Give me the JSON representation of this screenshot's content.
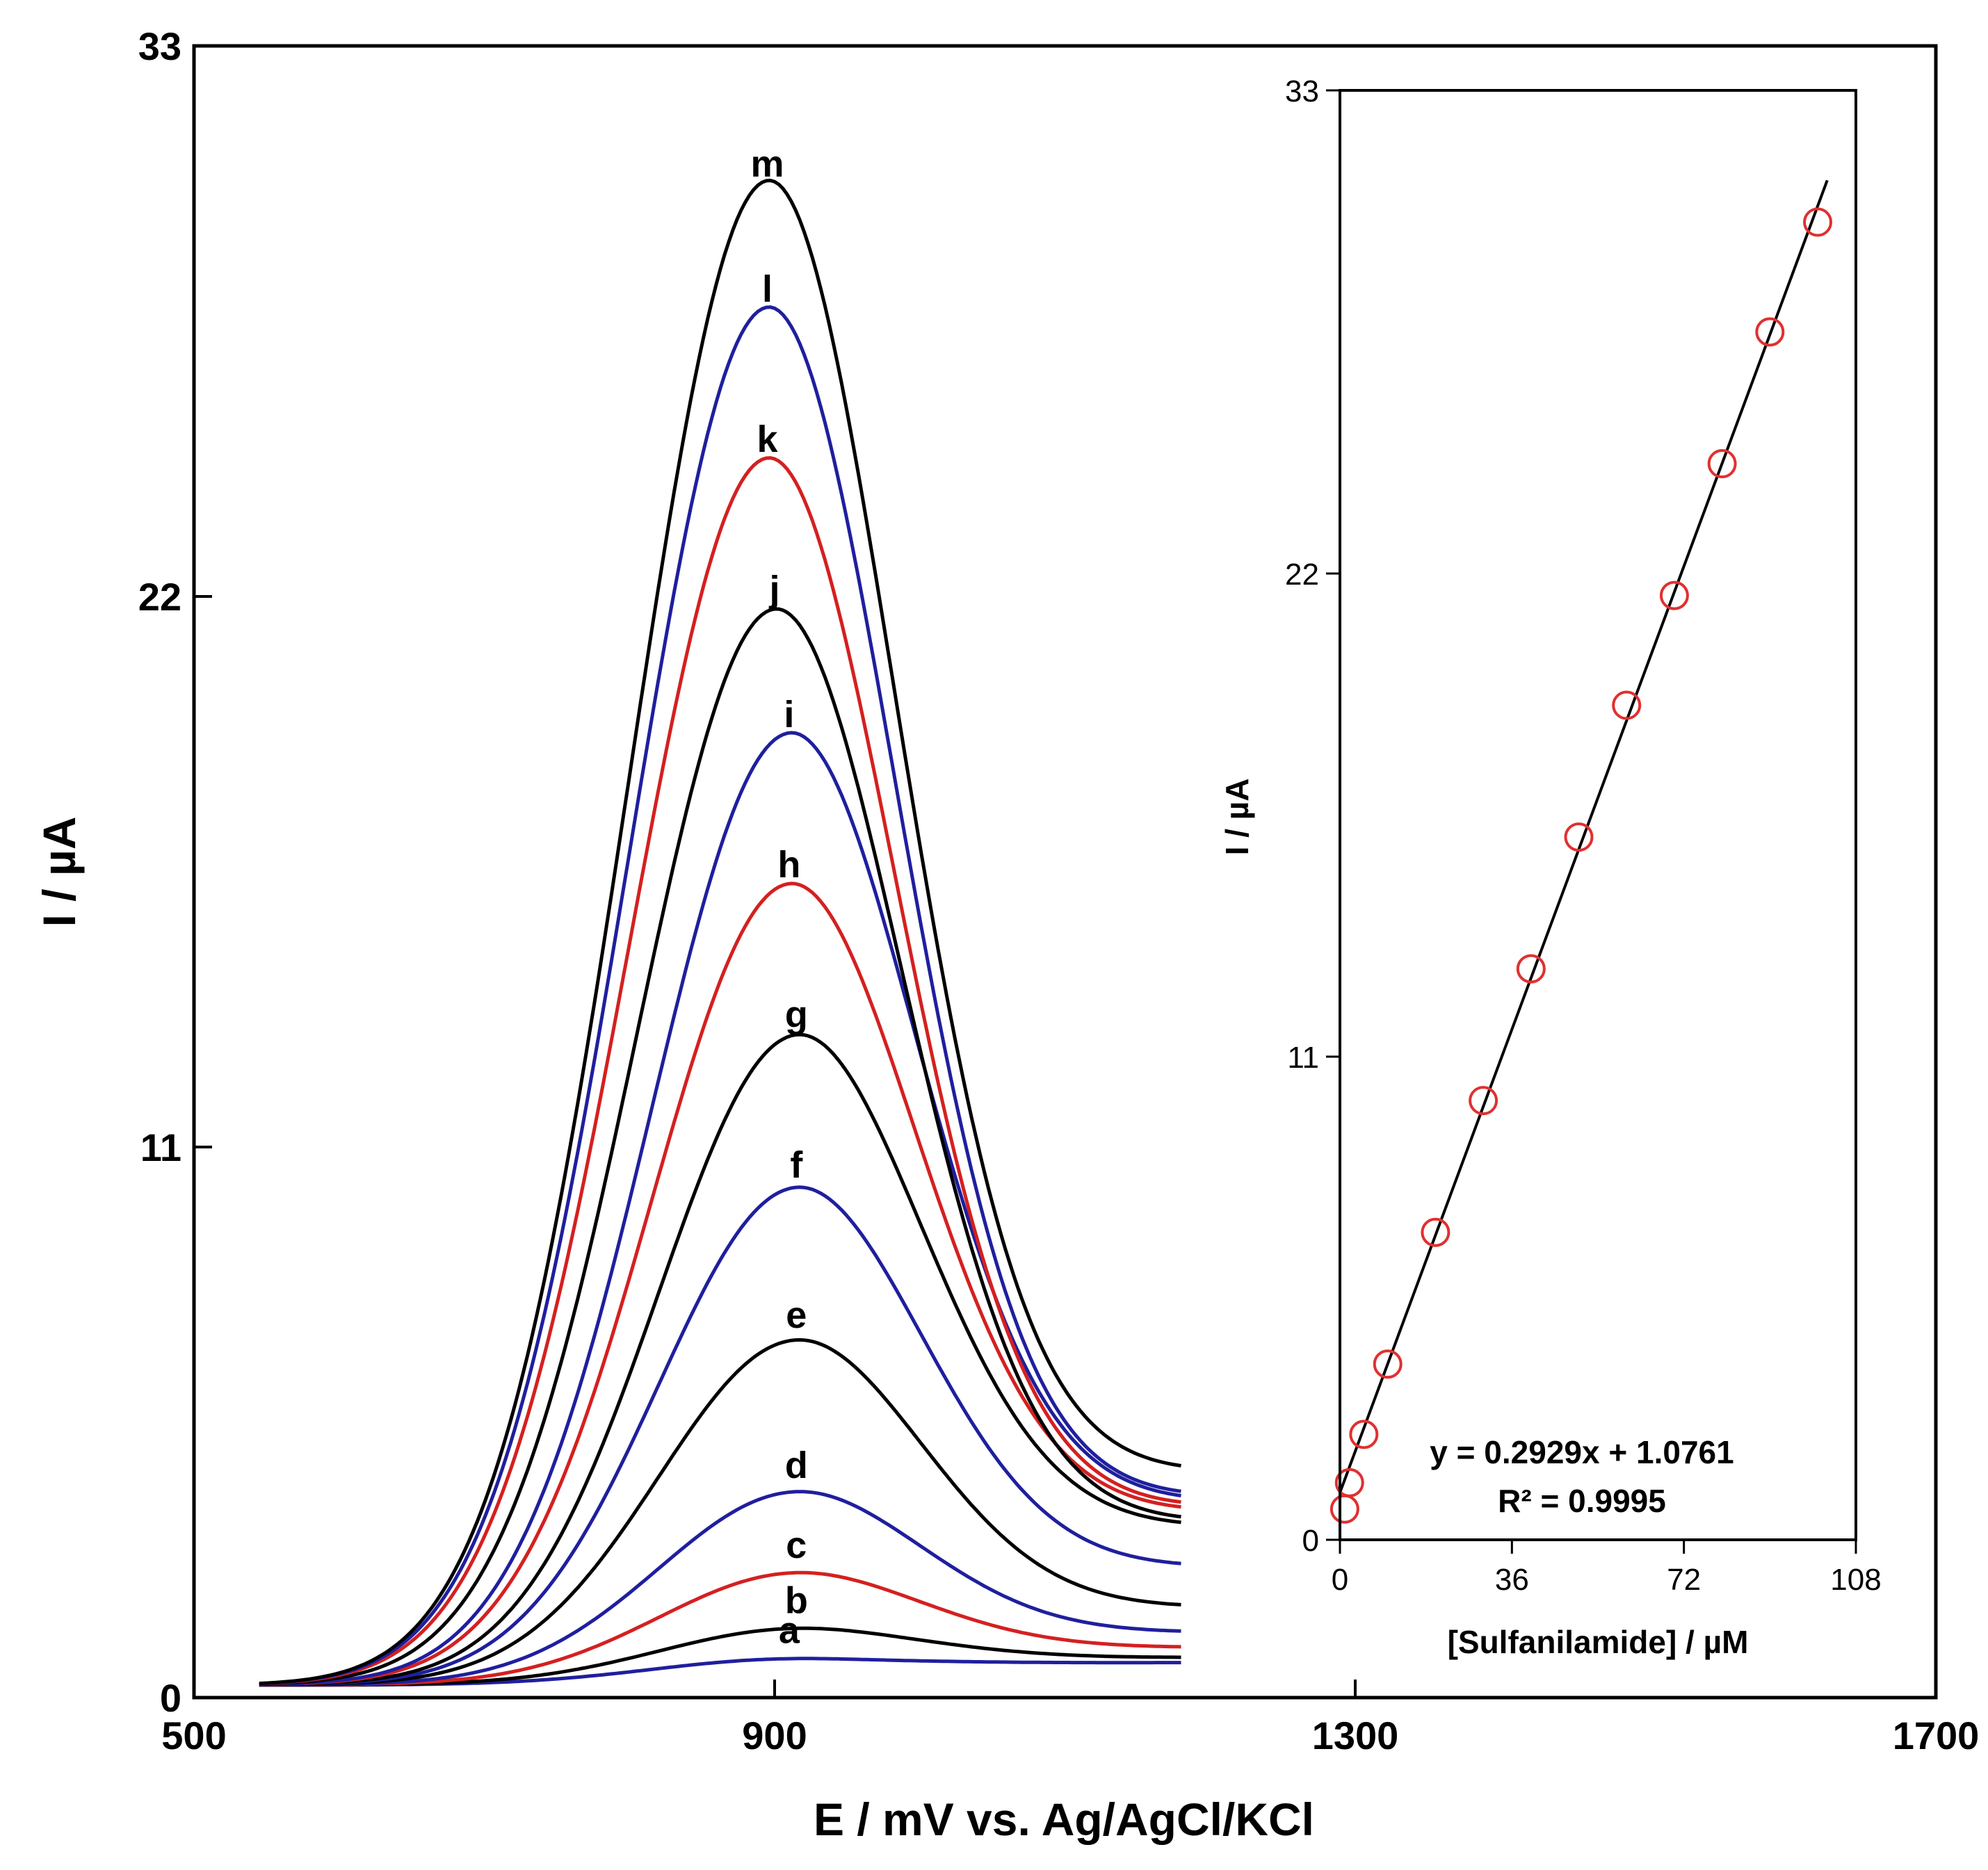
{
  "chart_data": [
    {
      "type": "line",
      "panel": "main",
      "title": "",
      "xlabel": "E / mV vs. Ag/AgCl/KCl",
      "ylabel": "I / µA",
      "xlim": [
        500,
        1700
      ],
      "ylim": [
        0,
        33
      ],
      "xticks": [
        "500",
        "900",
        "1300",
        "1700"
      ],
      "yticks": [
        "0",
        "11",
        "22",
        "33"
      ],
      "x_range_of_curves": [
        545,
        1180
      ],
      "series": [
        {
          "name": "a",
          "color": "#1f1f9e",
          "peak_E": 910,
          "peak_I": 0.7,
          "end_I": 0.7
        },
        {
          "name": "b",
          "color": "#000000",
          "peak_E": 915,
          "peak_I": 1.3,
          "end_I": 0.8
        },
        {
          "name": "c",
          "color": "#d42020",
          "peak_E": 915,
          "peak_I": 2.4,
          "end_I": 1.0
        },
        {
          "name": "d",
          "color": "#1f1f9e",
          "peak_E": 915,
          "peak_I": 4.0,
          "end_I": 1.3
        },
        {
          "name": "e",
          "color": "#000000",
          "peak_E": 915,
          "peak_I": 7.0,
          "end_I": 1.8
        },
        {
          "name": "f",
          "color": "#1f1f9e",
          "peak_E": 915,
          "peak_I": 10.0,
          "end_I": 2.6
        },
        {
          "name": "g",
          "color": "#000000",
          "peak_E": 915,
          "peak_I": 13.0,
          "end_I": 3.4
        },
        {
          "name": "h",
          "color": "#d42020",
          "peak_E": 910,
          "peak_I": 16.0,
          "end_I": 3.7
        },
        {
          "name": "i",
          "color": "#1f1f9e",
          "peak_E": 910,
          "peak_I": 19.0,
          "end_I": 3.9
        },
        {
          "name": "j",
          "color": "#000000",
          "peak_E": 900,
          "peak_I": 21.5,
          "end_I": 3.5
        },
        {
          "name": "k",
          "color": "#d42020",
          "peak_E": 895,
          "peak_I": 24.5,
          "end_I": 3.8
        },
        {
          "name": "l",
          "color": "#1f1f9e",
          "peak_E": 895,
          "peak_I": 27.5,
          "end_I": 4.0
        },
        {
          "name": "m",
          "color": "#000000",
          "peak_E": 895,
          "peak_I": 30.0,
          "end_I": 4.5
        }
      ]
    },
    {
      "type": "scatter",
      "panel": "inset",
      "title": "",
      "xlabel": "[Sulfanilamide] / µM",
      "ylabel": "I / µA",
      "xlim": [
        0,
        108
      ],
      "ylim": [
        0,
        33
      ],
      "xticks": [
        "0",
        "36",
        "72",
        "108"
      ],
      "yticks": [
        "0",
        "11",
        "22",
        "33"
      ],
      "x": [
        1,
        2,
        5,
        10,
        20,
        30,
        40,
        50,
        60,
        70,
        80,
        90,
        100
      ],
      "y": [
        0.7,
        1.3,
        2.4,
        4.0,
        7.0,
        10.0,
        13.0,
        16.0,
        19.0,
        21.5,
        24.5,
        27.5,
        30.0
      ],
      "marker_color": "#e03030",
      "fit": {
        "slope": 0.2929,
        "intercept": 1.0761,
        "x_range": [
          0,
          102
        ],
        "equation_text": "y = 0.2929x + 1.0761",
        "r2_text": "R² = 0.9995"
      }
    }
  ]
}
